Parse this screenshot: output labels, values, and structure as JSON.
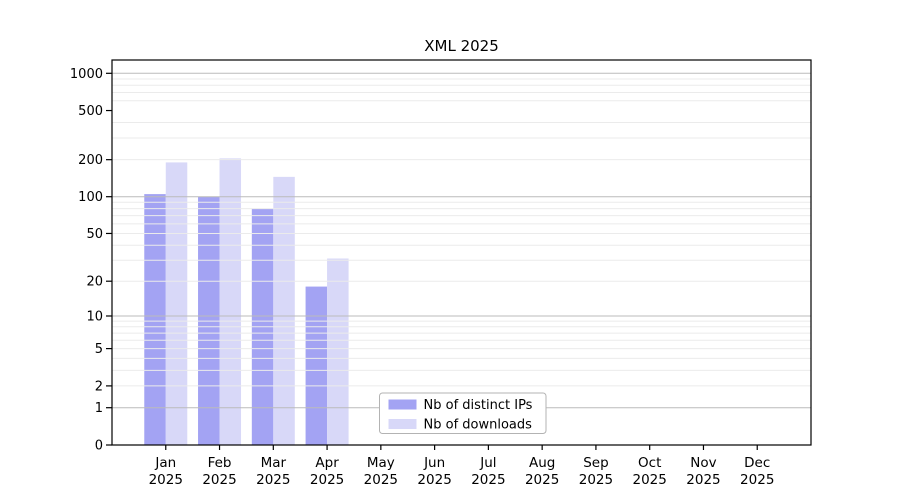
{
  "chart_data": {
    "type": "bar",
    "title": "XML 2025",
    "y_scale": "log1p",
    "year_label": "2025",
    "categories": [
      "Jan",
      "Feb",
      "Mar",
      "Apr",
      "May",
      "Jun",
      "Jul",
      "Aug",
      "Sep",
      "Oct",
      "Nov",
      "Dec"
    ],
    "series": [
      {
        "name": "Nb of distinct IPs",
        "color": "#a3a3f3",
        "values": [
          105,
          100,
          80,
          18,
          0,
          0,
          0,
          0,
          0,
          0,
          0,
          0
        ]
      },
      {
        "name": "Nb of downloads",
        "color": "#d8d8f8",
        "values": [
          190,
          205,
          145,
          31,
          0,
          0,
          0,
          0,
          0,
          0,
          0,
          0
        ]
      }
    ],
    "y_ticks": [
      0,
      1,
      2,
      5,
      10,
      20,
      50,
      100,
      200,
      500,
      1000
    ],
    "major_gridlines": [
      1,
      10,
      100,
      1000
    ],
    "minor_gridlines": [
      2,
      3,
      4,
      5,
      6,
      7,
      8,
      9,
      20,
      30,
      40,
      50,
      60,
      70,
      80,
      90,
      200,
      300,
      400,
      600,
      700,
      800,
      900
    ],
    "ylim": [
      0,
      1280
    ],
    "legend": {
      "position": "lower-center",
      "labels": [
        "Nb of distinct IPs",
        "Nb of downloads"
      ]
    },
    "colors": {
      "background": "#ffffff",
      "axis": "#000000",
      "text": "#000000",
      "major_grid": "#bbbbbb",
      "minor_grid": "#ebebeb",
      "legend_border": "#b3b3b3",
      "legend_background": "#ffffff"
    }
  }
}
